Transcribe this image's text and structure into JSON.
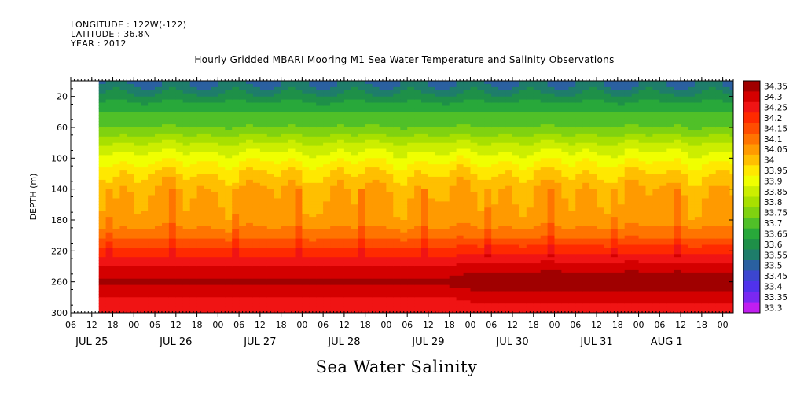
{
  "header": {
    "longitude": "LONGITUDE : 122W(-122)",
    "latitude": "LATITUDE : 36.8N",
    "year": "YEAR : 2012"
  },
  "chart_data": {
    "type": "heatmap",
    "title": "Hourly Gridded MBARI Mooring M1 Sea Water Temperature and Salinity Observations",
    "xlabel": "Sea Water Salinity",
    "ylabel": "DEPTH (m)",
    "y_axis": {
      "reversed": true,
      "range": [
        0,
        300
      ],
      "tick_values": [
        20,
        60,
        100,
        140,
        180,
        220,
        260,
        300
      ],
      "tick_labels": [
        "20",
        "60",
        "100",
        "140",
        "180",
        "220",
        "260",
        "300"
      ]
    },
    "x_axis": {
      "range_hours": [
        0,
        189
      ],
      "hour_ticks": [
        {
          "h": 0,
          "label": "06"
        },
        {
          "h": 6,
          "label": "12"
        },
        {
          "h": 12,
          "label": "18"
        },
        {
          "h": 18,
          "label": "00"
        },
        {
          "h": 24,
          "label": "06"
        },
        {
          "h": 30,
          "label": "12"
        },
        {
          "h": 36,
          "label": "18"
        },
        {
          "h": 42,
          "label": "00"
        },
        {
          "h": 48,
          "label": "06"
        },
        {
          "h": 54,
          "label": "12"
        },
        {
          "h": 60,
          "label": "18"
        },
        {
          "h": 66,
          "label": "00"
        },
        {
          "h": 72,
          "label": "06"
        },
        {
          "h": 78,
          "label": "12"
        },
        {
          "h": 84,
          "label": "18"
        },
        {
          "h": 90,
          "label": "00"
        },
        {
          "h": 96,
          "label": "06"
        },
        {
          "h": 102,
          "label": "12"
        },
        {
          "h": 108,
          "label": "18"
        },
        {
          "h": 114,
          "label": "00"
        },
        {
          "h": 120,
          "label": "06"
        },
        {
          "h": 126,
          "label": "12"
        },
        {
          "h": 132,
          "label": "18"
        },
        {
          "h": 138,
          "label": "00"
        },
        {
          "h": 144,
          "label": "06"
        },
        {
          "h": 150,
          "label": "12"
        },
        {
          "h": 156,
          "label": "18"
        },
        {
          "h": 162,
          "label": "00"
        },
        {
          "h": 168,
          "label": "06"
        },
        {
          "h": 174,
          "label": "12"
        },
        {
          "h": 180,
          "label": "18"
        },
        {
          "h": 186,
          "label": "00"
        }
      ],
      "day_labels": [
        {
          "h": 6,
          "label": "JUL 25"
        },
        {
          "h": 30,
          "label": "JUL 26"
        },
        {
          "h": 54,
          "label": "JUL 27"
        },
        {
          "h": 78,
          "label": "JUL 28"
        },
        {
          "h": 102,
          "label": "JUL 29"
        },
        {
          "h": 126,
          "label": "JUL 30"
        },
        {
          "h": 150,
          "label": "JUL 31"
        },
        {
          "h": 170,
          "label": "AUG  1"
        }
      ]
    },
    "missing_data_hours": [
      [
        0,
        7.5
      ]
    ],
    "profile": [
      {
        "depth": 5,
        "salinity": 33.55
      },
      {
        "depth": 20,
        "salinity": 33.6
      },
      {
        "depth": 40,
        "salinity": 33.65
      },
      {
        "depth": 60,
        "salinity": 33.7
      },
      {
        "depth": 80,
        "salinity": 33.8
      },
      {
        "depth": 100,
        "salinity": 33.88
      },
      {
        "depth": 120,
        "salinity": 33.95
      },
      {
        "depth": 140,
        "salinity": 34.0
      },
      {
        "depth": 180,
        "salinity": 34.02
      },
      {
        "depth": 200,
        "salinity": 34.08
      },
      {
        "depth": 220,
        "salinity": 34.17
      },
      {
        "depth": 240,
        "salinity": 34.25
      },
      {
        "depth": 260,
        "salinity": 34.32
      },
      {
        "depth": 280,
        "salinity": 34.25
      },
      {
        "depth": 300,
        "salinity": 34.22
      }
    ],
    "colorbar": {
      "levels": [
        "34.35",
        "34.3",
        "34.25",
        "34.2",
        "34.15",
        "34.1",
        "34.05",
        "34",
        "33.95",
        "33.9",
        "33.85",
        "33.8",
        "33.75",
        "33.7",
        "33.65",
        "33.6",
        "33.55",
        "33.5",
        "33.45",
        "33.4",
        "33.35",
        "33.3"
      ],
      "colors": [
        "#a00000",
        "#d40000",
        "#f01414",
        "#ff2a00",
        "#ff4d00",
        "#ff7400",
        "#ff9a00",
        "#ffbf00",
        "#ffe800",
        "#f0ff00",
        "#ccee00",
        "#a8e000",
        "#80d210",
        "#50c028",
        "#28a83a",
        "#1e9048",
        "#1e7d6a",
        "#2a60a0",
        "#3c46d0",
        "#5032ec",
        "#7a28f2",
        "#c01ef0"
      ]
    },
    "grid": false
  }
}
